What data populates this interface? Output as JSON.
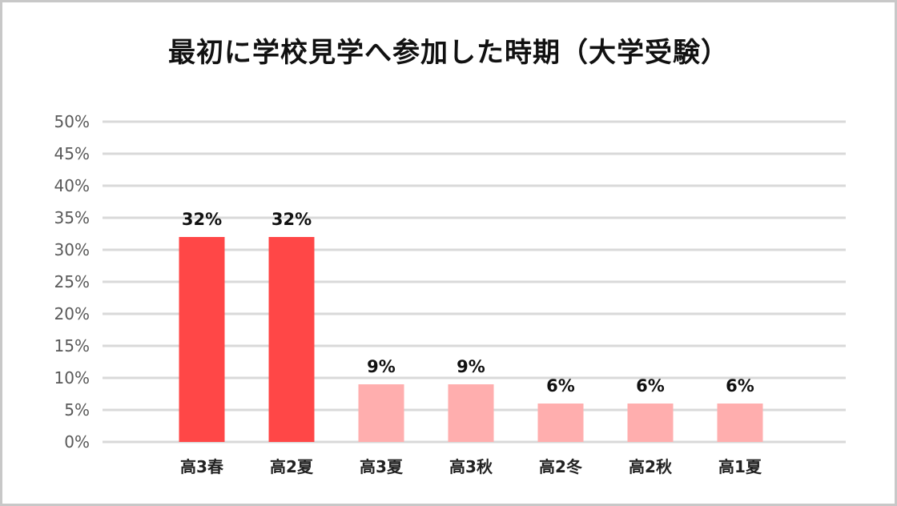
{
  "chart_data": {
    "type": "bar",
    "title": "最初に学校見学へ参加した時期（大学受験）",
    "categories": [
      "高3春",
      "高2夏",
      "高3夏",
      "高3秋",
      "高2冬",
      "高2秋",
      "高1夏"
    ],
    "values": [
      32,
      32,
      9,
      9,
      6,
      6,
      6
    ],
    "value_labels": [
      "32%",
      "32%",
      "9%",
      "9%",
      "6%",
      "6%",
      "6%"
    ],
    "y_ticks": [
      "0%",
      "5%",
      "10%",
      "15%",
      "20%",
      "25%",
      "30%",
      "35%",
      "40%",
      "45%",
      "50%"
    ],
    "ylim": [
      0,
      50
    ],
    "grid": true,
    "colors": {
      "highlight": "#ff4747",
      "normal": "#ffaeae",
      "grid": "#d9d9d9"
    },
    "highlight_indices": [
      0,
      1
    ]
  }
}
